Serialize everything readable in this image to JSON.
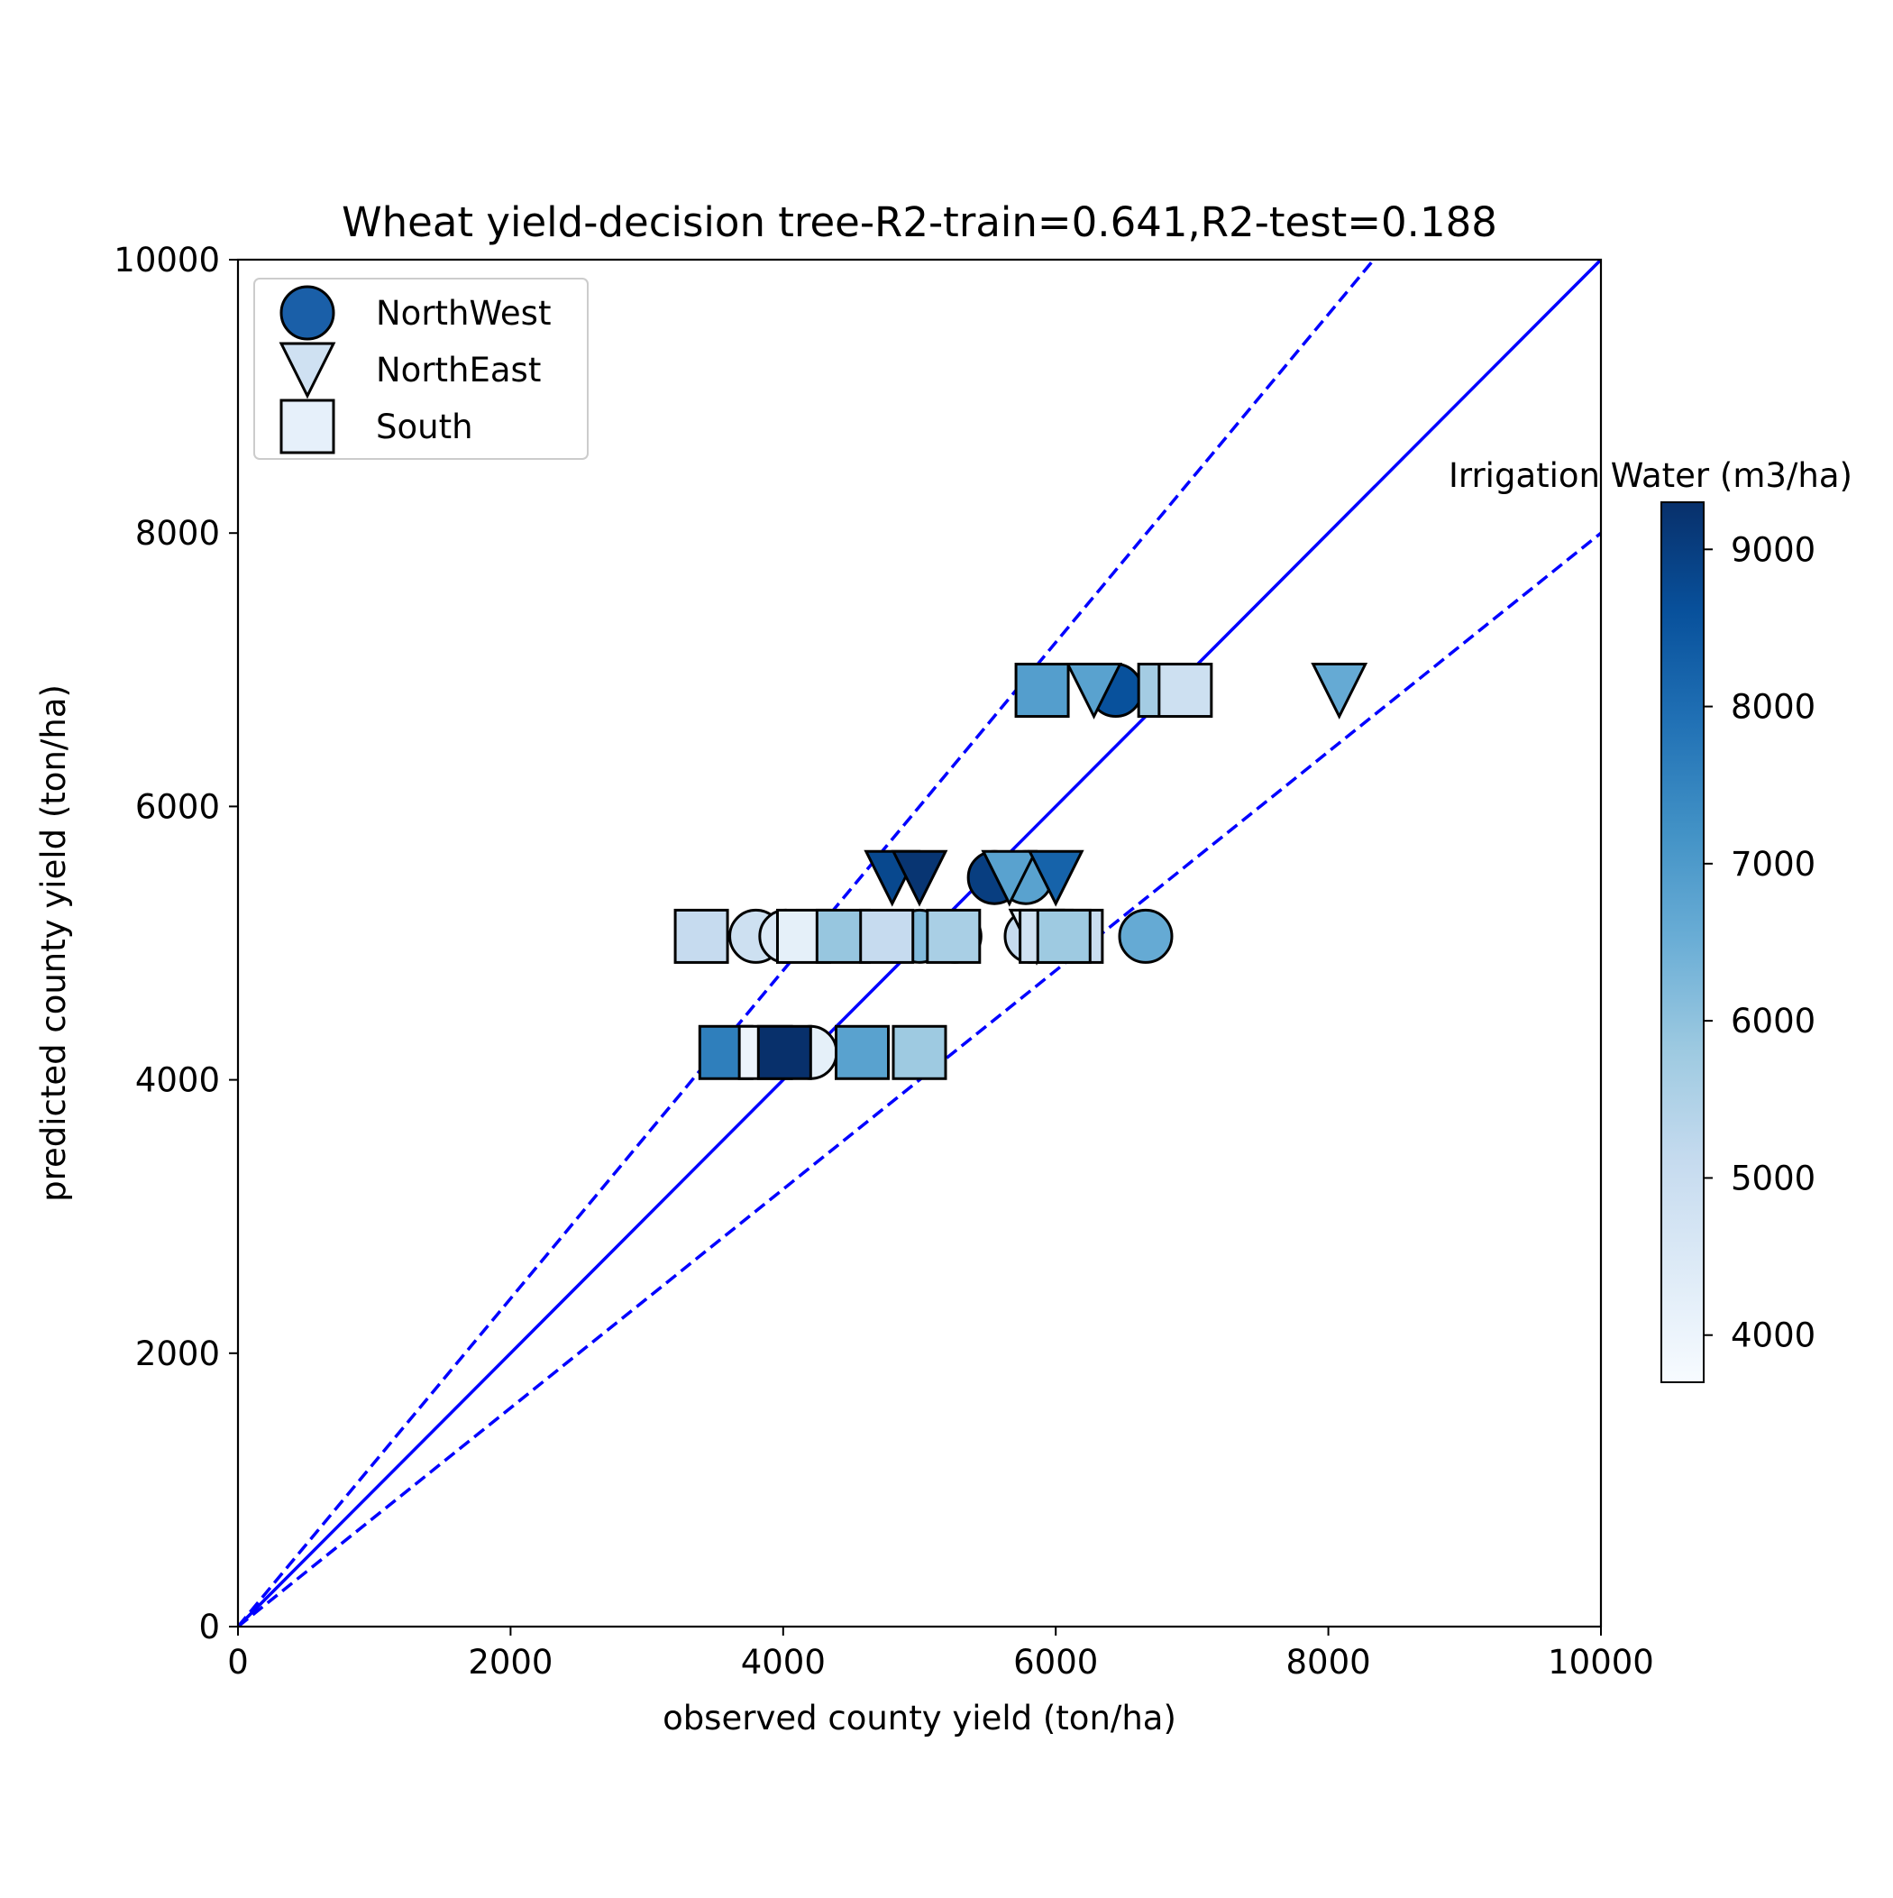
{
  "chart_data": {
    "type": "scatter",
    "title": "Wheat yield-decision tree-R2-train=0.641,R2-test=0.188",
    "xlabel": "observed county yield (ton/ha)",
    "ylabel": "predicted county yield (ton/ha)",
    "xlim": [
      0,
      10000
    ],
    "ylim": [
      0,
      10000
    ],
    "xticks": [
      0,
      2000,
      4000,
      6000,
      8000,
      10000
    ],
    "yticks": [
      0,
      2000,
      4000,
      6000,
      8000,
      10000
    ],
    "xtick_labels": [
      "0",
      "2000",
      "4000",
      "6000",
      "8000",
      "10000"
    ],
    "ytick_labels": [
      "0",
      "2000",
      "4000",
      "6000",
      "8000",
      "10000"
    ],
    "grid": false,
    "legend_position": "top-left",
    "legend": [
      {
        "name": "NorthWest",
        "marker": "circle",
        "color": "#1a5fa8"
      },
      {
        "name": "NorthEast",
        "marker": "triangle-down",
        "color": "#cfe1f2"
      },
      {
        "name": "South",
        "marker": "square",
        "color": "#e6f0fa"
      }
    ],
    "reference_lines": [
      {
        "slope": 1.0,
        "style": "solid",
        "color": "#0000ff"
      },
      {
        "slope": 1.2,
        "style": "dashed",
        "color": "#0000ff"
      },
      {
        "slope": 0.8,
        "style": "dashed",
        "color": "#0000ff"
      }
    ],
    "colorbar": {
      "label": "Irrigation Water (m3/ha)",
      "colormap": "Blues",
      "range": [
        3700,
        9300
      ],
      "ticks": [
        4000,
        5000,
        6000,
        7000,
        8000,
        9000
      ],
      "tick_labels": [
        "4000",
        "5000",
        "6000",
        "7000",
        "8000",
        "9000"
      ]
    },
    "series": [
      {
        "name": "NorthWest",
        "marker": "circle",
        "points": [
          {
            "x": 3800,
            "y": 5050,
            "c": 4900
          },
          {
            "x": 4020,
            "y": 5050,
            "c": 4500
          },
          {
            "x": 4200,
            "y": 4200,
            "c": 4200
          },
          {
            "x": 5000,
            "y": 5050,
            "c": 6200
          },
          {
            "x": 5260,
            "y": 5050,
            "c": 5600
          },
          {
            "x": 5550,
            "y": 5480,
            "c": 9000
          },
          {
            "x": 5780,
            "y": 5480,
            "c": 6800
          },
          {
            "x": 5820,
            "y": 5050,
            "c": 5100
          },
          {
            "x": 6440,
            "y": 6850,
            "c": 8600
          },
          {
            "x": 6660,
            "y": 5050,
            "c": 6600
          }
        ]
      },
      {
        "name": "NorthEast",
        "marker": "triangle-down",
        "points": [
          {
            "x": 4800,
            "y": 5480,
            "c": 8800
          },
          {
            "x": 5000,
            "y": 5480,
            "c": 9200
          },
          {
            "x": 5660,
            "y": 5480,
            "c": 6800
          },
          {
            "x": 5860,
            "y": 5050,
            "c": 4300
          },
          {
            "x": 6000,
            "y": 5480,
            "c": 8200
          },
          {
            "x": 6280,
            "y": 6850,
            "c": 6800
          },
          {
            "x": 8080,
            "y": 6850,
            "c": 6600
          }
        ]
      },
      {
        "name": "South",
        "marker": "square",
        "points": [
          {
            "x": 3400,
            "y": 5050,
            "c": 5100
          },
          {
            "x": 3580,
            "y": 4200,
            "c": 7600
          },
          {
            "x": 3870,
            "y": 4200,
            "c": 4000
          },
          {
            "x": 4010,
            "y": 4200,
            "c": 9300
          },
          {
            "x": 4150,
            "y": 5050,
            "c": 4200
          },
          {
            "x": 4440,
            "y": 5050,
            "c": 5900
          },
          {
            "x": 4580,
            "y": 4200,
            "c": 6800
          },
          {
            "x": 4760,
            "y": 5050,
            "c": 5100
          },
          {
            "x": 5000,
            "y": 4200,
            "c": 5800
          },
          {
            "x": 5250,
            "y": 5050,
            "c": 5600
          },
          {
            "x": 5900,
            "y": 6850,
            "c": 6900
          },
          {
            "x": 5930,
            "y": 5050,
            "c": 4800
          },
          {
            "x": 6150,
            "y": 5050,
            "c": 5000
          },
          {
            "x": 6060,
            "y": 5050,
            "c": 5800
          },
          {
            "x": 6800,
            "y": 6850,
            "c": 5700
          },
          {
            "x": 6950,
            "y": 6850,
            "c": 4900
          }
        ]
      }
    ]
  }
}
